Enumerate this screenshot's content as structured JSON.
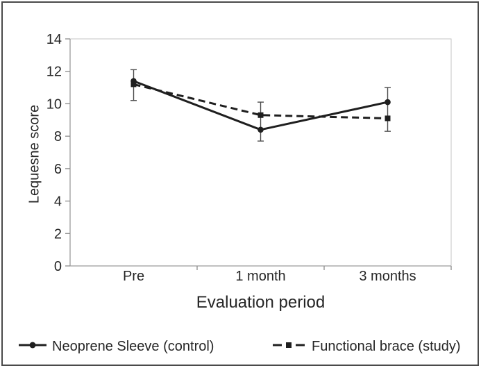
{
  "figure": {
    "xlabel": "Evaluation period",
    "ylabel": "Lequesne score",
    "legend": {
      "items": [
        {
          "label": "Neoprene Sleeve (control)",
          "swatch": "solid-line-circle-marker"
        },
        {
          "label": "Functional brace (study)",
          "swatch": "dashed-line-square-marker"
        }
      ]
    }
  },
  "chart_data": {
    "type": "line",
    "title": "",
    "xlabel": "Evaluation period",
    "ylabel": "Lequesne score",
    "categories": [
      "Pre",
      "1 month",
      "3 months"
    ],
    "yticks": [
      0,
      2,
      4,
      6,
      8,
      10,
      12,
      14
    ],
    "ylim": [
      0,
      14
    ],
    "grid": false,
    "legend_position": "bottom",
    "series": [
      {
        "name": "Neoprene Sleeve (control)",
        "line_style": "solid",
        "marker": "circle",
        "values": [
          11.4,
          8.4,
          10.1
        ]
      },
      {
        "name": "Functional brace (study)",
        "line_style": "dashed",
        "marker": "square",
        "values": [
          11.2,
          9.3,
          9.1
        ]
      }
    ],
    "error_bars": [
      {
        "category": "Pre",
        "low": 10.2,
        "high": 12.1
      },
      {
        "category": "1 month",
        "low": 7.7,
        "high": 10.1
      },
      {
        "category": "3 months",
        "low": 8.3,
        "high": 11.0
      }
    ],
    "colors": {
      "ink": "#1f1f1f",
      "text": "#262626",
      "frame_border": "#4a4a4a",
      "plot_border": "#c4c4c4",
      "axis_line": "#9a9a9a",
      "tick_mark": "#8c8c8c",
      "error_bar": "#4d4d4d"
    }
  }
}
